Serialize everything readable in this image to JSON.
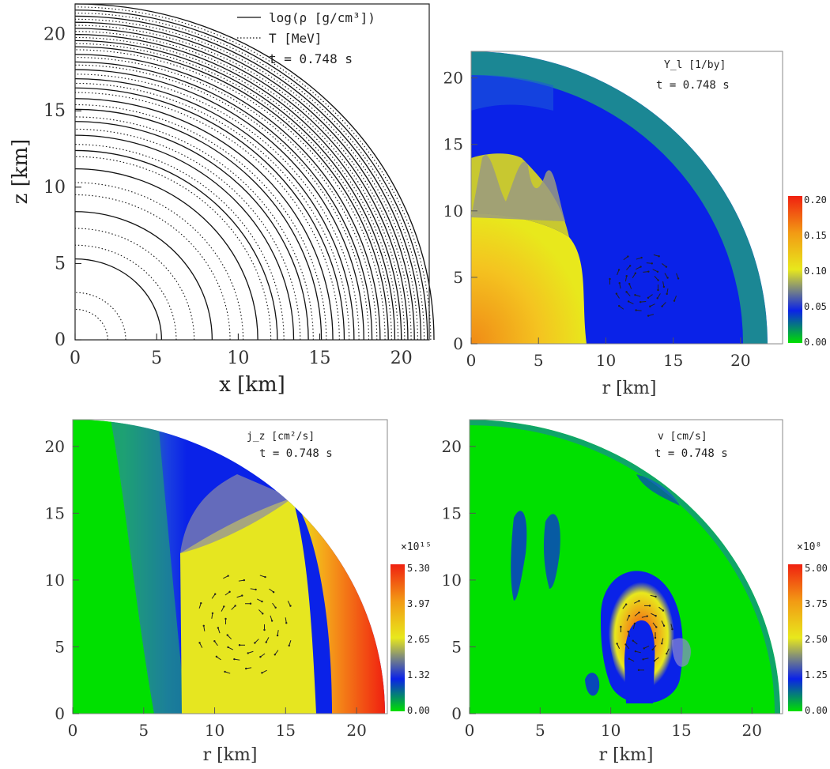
{
  "colors": {
    "green": "#00e000",
    "blue": "#0a22e8",
    "yellow": "#e8e81c",
    "orange": "#f29a14",
    "red": "#f02010"
  },
  "chart_data": [
    {
      "id": "rho-T",
      "type": "line",
      "xlabel": "x [km]",
      "ylabel": "z [km]",
      "xlim": [
        0,
        22
      ],
      "ylim": [
        0,
        22
      ],
      "xticks": [
        "0",
        "5",
        "10",
        "15",
        "20"
      ],
      "yticks": [
        "0",
        "5",
        "10",
        "15",
        "20"
      ],
      "legend": [
        {
          "style": "solid",
          "label": "log(ρ [g/cm³])"
        },
        {
          "style": "dotted",
          "label": "T [MeV]"
        }
      ],
      "annotation": "t = 0.748 s",
      "series": [
        {
          "name": "log(ρ [g/cm³])",
          "style": "solid",
          "contour_radii_km": [
            5.3,
            8.4,
            11.2,
            12.4,
            13.4,
            14.3,
            15.1,
            15.8,
            16.5,
            17.1,
            17.7,
            18.2,
            18.7,
            19.2,
            19.6,
            20.0,
            20.4,
            20.8,
            21.2,
            21.6,
            22.0
          ]
        },
        {
          "name": "T [MeV]",
          "style": "dotted",
          "contour_radii_km": [
            2.0,
            3.1,
            6.2,
            7.3,
            9.5,
            10.3,
            12.0,
            12.8,
            13.8,
            14.6,
            15.4,
            16.2,
            16.8,
            17.4,
            18.0,
            18.5,
            19.0,
            19.4,
            19.8,
            20.2,
            20.6,
            21.0,
            21.4,
            21.8
          ]
        }
      ],
      "legend_placement": "top-right"
    },
    {
      "id": "Yl",
      "type": "heatmap",
      "label": "Y_l [1/by]",
      "annotation": "t = 0.748 s",
      "xlabel": "r [km]",
      "ylabel": "",
      "xlim": [
        0,
        22
      ],
      "ylim": [
        0,
        22
      ],
      "xticks": [
        "0",
        "5",
        "10",
        "15",
        "20"
      ],
      "yticks": [
        "0",
        "5",
        "10",
        "15",
        "20"
      ],
      "colorbar": {
        "ticks": [
          "0.20",
          "0.15",
          "0.10",
          "0.05",
          "0.00"
        ],
        "range": [
          0.0,
          0.2
        ],
        "multiplier": ""
      }
    },
    {
      "id": "jz",
      "type": "heatmap",
      "label": "j_z [cm²/s]",
      "annotation": "t = 0.748 s",
      "xlabel": "r [km]",
      "ylabel": "",
      "xlim": [
        0,
        22
      ],
      "ylim": [
        0,
        22
      ],
      "xticks": [
        "0",
        "5",
        "10",
        "15",
        "20"
      ],
      "yticks": [
        "0",
        "5",
        "10",
        "15",
        "20"
      ],
      "colorbar": {
        "ticks": [
          "5.30",
          "3.97",
          "2.65",
          "1.32",
          "0.00"
        ],
        "range": [
          0.0,
          5.3
        ],
        "multiplier": "×10¹⁵"
      }
    },
    {
      "id": "v",
      "type": "heatmap",
      "label": "v [cm/s]",
      "annotation": "t = 0.748 s",
      "xlabel": "r [km]",
      "ylabel": "",
      "xlim": [
        0,
        22
      ],
      "ylim": [
        0,
        22
      ],
      "xticks": [
        "0",
        "5",
        "10",
        "15",
        "20"
      ],
      "yticks": [
        "0",
        "5",
        "10",
        "15",
        "20"
      ],
      "colorbar": {
        "ticks": [
          "5.00",
          "3.75",
          "2.50",
          "1.25",
          "0.00"
        ],
        "range": [
          0.0,
          5.0
        ],
        "multiplier": "×10⁸"
      }
    }
  ]
}
